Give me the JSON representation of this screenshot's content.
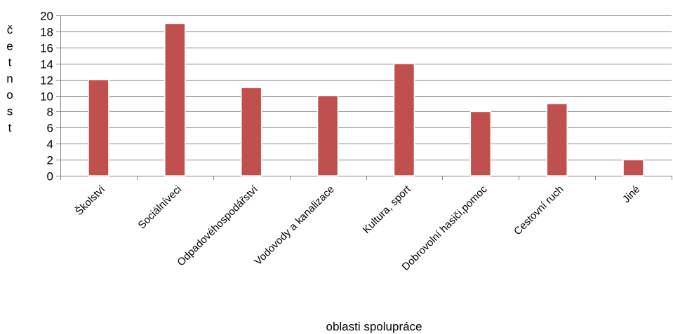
{
  "chart_data": {
    "type": "bar",
    "categories": [
      "Školství",
      "Sociálníveci",
      "Odpadovéhospodářství",
      "Vodovody a kanalizace",
      "Kultura, sport",
      "Dobrovolní hasiči,pomoc",
      "Cestovní ruch",
      "Jiné"
    ],
    "values": [
      12,
      19,
      11,
      10,
      14,
      8,
      9,
      2
    ],
    "title": "",
    "xlabel": "oblasti spolupráce",
    "ylabel": "četnost",
    "ylim": [
      0,
      20
    ],
    "yticks": [
      "0",
      "2",
      "4",
      "6",
      "8",
      "10",
      "12",
      "14",
      "16",
      "18",
      "20"
    ],
    "grid": true,
    "legend": "none",
    "bar_color": "#c0504d",
    "grid_color": "#868686"
  }
}
